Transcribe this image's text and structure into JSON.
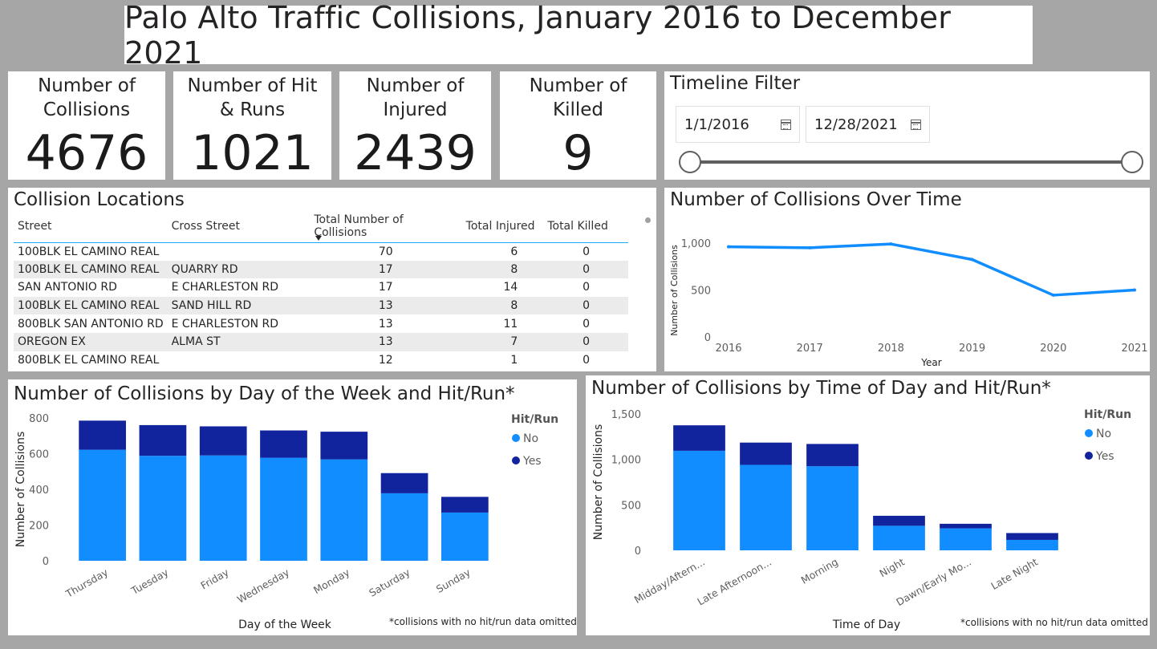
{
  "title": "Palo Alto Traffic Collisions, January 2016 to December 2021",
  "cards": [
    {
      "label": "Number of\nCollisions",
      "value": "4676"
    },
    {
      "label": "Number of Hit\n& Runs",
      "value": "1021"
    },
    {
      "label": "Number of\nInjured",
      "value": "2439"
    },
    {
      "label": "Number of\nKilled",
      "value": "9"
    }
  ],
  "timeline": {
    "title": "Timeline Filter",
    "start": "1/1/2016",
    "end": "12/28/2021",
    "icon": "calendar-icon",
    "range_fraction": [
      0.0,
      1.0
    ]
  },
  "locations": {
    "title": "Collision Locations",
    "columns": [
      "Street",
      "Cross Street",
      "Total Number of Collisions",
      "Total Injured",
      "Total Killed"
    ],
    "sort_column": "Total Number of Collisions",
    "rows": [
      [
        "100BLK EL CAMINO REAL",
        "",
        "70",
        "6",
        "0"
      ],
      [
        "100BLK EL CAMINO REAL",
        "QUARRY RD",
        "17",
        "8",
        "0"
      ],
      [
        "SAN ANTONIO RD",
        "E CHARLESTON RD",
        "17",
        "14",
        "0"
      ],
      [
        "100BLK EL CAMINO REAL",
        "SAND HILL RD",
        "13",
        "8",
        "0"
      ],
      [
        "800BLK SAN ANTONIO RD",
        "E CHARLESTON RD",
        "13",
        "11",
        "0"
      ],
      [
        "OREGON EX",
        "ALMA ST",
        "13",
        "7",
        "0"
      ],
      [
        "800BLK EL CAMINO REAL",
        "",
        "12",
        "1",
        "0"
      ]
    ]
  },
  "footnote": "*collisions with no hit/run data omitted",
  "colors": {
    "no": "#118dff",
    "yes": "#12239e",
    "line": "#118dff",
    "background": "#a6a6a6"
  },
  "chart_data": [
    {
      "type": "line",
      "title": "Number of Collisions Over Time",
      "xlabel": "Year",
      "ylabel": "Number of Collisions",
      "x": [
        "2016",
        "2017",
        "2018",
        "2019",
        "2020",
        "2021"
      ],
      "values": [
        960,
        950,
        990,
        825,
        445,
        500
      ],
      "ylim": [
        0,
        1000
      ],
      "yticks": [
        0,
        500,
        1000
      ],
      "ytick_labels": [
        "0",
        "500",
        "1,000"
      ],
      "grid": false
    },
    {
      "type": "bar",
      "stacked": true,
      "title": "Number of Collisions by Day of the Week and Hit/Run*",
      "xlabel": "Day of the Week",
      "ylabel": "Number of Collisions",
      "categories": [
        "Thursday",
        "Tuesday",
        "Friday",
        "Wednesday",
        "Monday",
        "Saturday",
        "Sunday"
      ],
      "legend_title": "Hit/Run",
      "legend_position": "top-right",
      "series": [
        {
          "name": "No",
          "values": [
            622,
            588,
            590,
            577,
            568,
            378,
            270
          ]
        },
        {
          "name": "Yes",
          "values": [
            163,
            172,
            163,
            153,
            155,
            113,
            88
          ]
        }
      ],
      "ylim": [
        0,
        800
      ],
      "yticks": [
        0,
        200,
        400,
        600,
        800
      ],
      "ytick_labels": [
        "0",
        "200",
        "400",
        "600",
        "800"
      ],
      "grid": false
    },
    {
      "type": "bar",
      "stacked": true,
      "title": "Number of Collisions by Time of Day and Hit/Run*",
      "xlabel": "Time of Day",
      "ylabel": "Number of Collisions",
      "categories": [
        "Midday/Aftern...",
        "Late Afternoon...",
        "Morning",
        "Night",
        "Dawn/Early Mo...",
        "Late Night"
      ],
      "legend_title": "Hit/Run",
      "legend_position": "top-right",
      "series": [
        {
          "name": "No",
          "values": [
            1095,
            940,
            925,
            270,
            242,
            115
          ]
        },
        {
          "name": "Yes",
          "values": [
            280,
            245,
            245,
            110,
            50,
            75
          ]
        }
      ],
      "ylim": [
        0,
        1500
      ],
      "yticks": [
        0,
        500,
        1000,
        1500
      ],
      "ytick_labels": [
        "0",
        "500",
        "1,000",
        "1,500"
      ],
      "grid": false
    }
  ]
}
